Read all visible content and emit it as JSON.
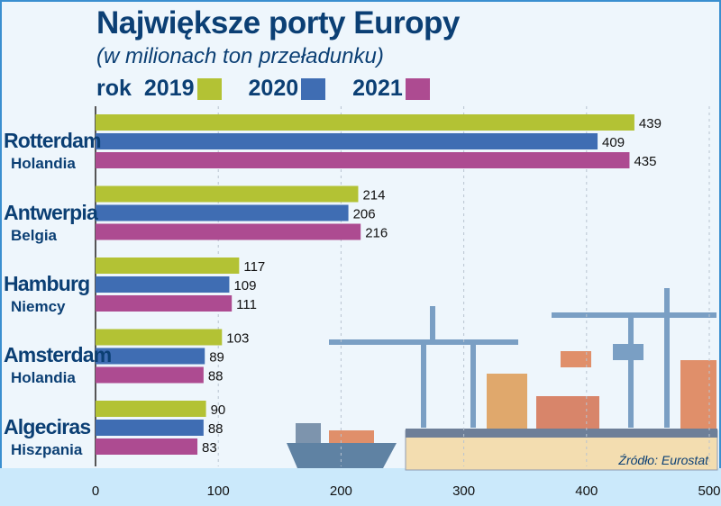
{
  "chart_data": {
    "type": "bar",
    "orientation": "horizontal",
    "title": "Największe porty Europy",
    "subtitle": "(w milionach ton przeładunku)",
    "legend_prefix": "rok",
    "categories": [
      {
        "name": "Rotterdam",
        "country": "Holandia"
      },
      {
        "name": "Antwerpia",
        "country": "Belgia"
      },
      {
        "name": "Hamburg",
        "country": "Niemcy"
      },
      {
        "name": "Amsterdam",
        "country": "Holandia"
      },
      {
        "name": "Algeciras",
        "country": "Hiszpania"
      }
    ],
    "series": [
      {
        "name": "2019",
        "color": "#b3c234",
        "values": [
          439,
          214,
          117,
          103,
          90
        ]
      },
      {
        "name": "2020",
        "color": "#3f6db3",
        "values": [
          409,
          206,
          109,
          89,
          88
        ]
      },
      {
        "name": "2021",
        "color": "#ad4b91",
        "values": [
          435,
          216,
          111,
          88,
          83
        ]
      }
    ],
    "xlim": [
      0,
      500
    ],
    "xticks": [
      "0",
      "100",
      "200",
      "300",
      "400",
      "500"
    ],
    "grid": true,
    "legend_position": "top",
    "source": "Źródło: Eurostat"
  }
}
